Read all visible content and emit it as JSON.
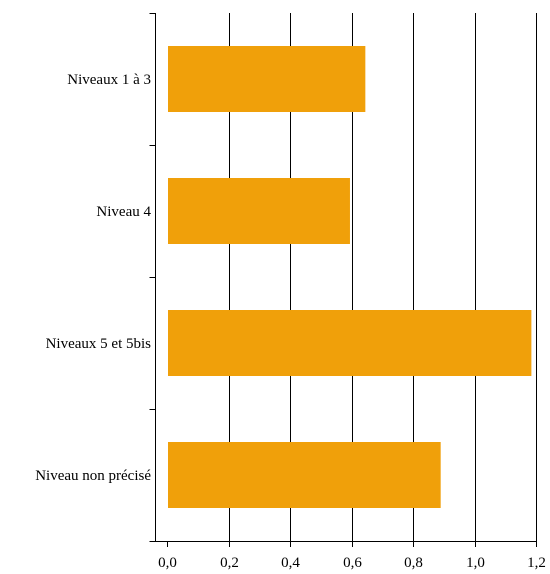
{
  "chart_data": {
    "type": "bar",
    "orientation": "horizontal",
    "categories": [
      "Niveaux 1 à 3",
      "Niveau 4",
      "Niveaux 5 et 5bis",
      "Niveau non précisé"
    ],
    "values": [
      0.645,
      0.595,
      1.185,
      0.89
    ],
    "title": "",
    "xlabel": "",
    "ylabel": "",
    "xlim": [
      0,
      1.2
    ],
    "xticks": [
      0.0,
      0.2,
      0.4,
      0.6,
      0.8,
      1.0,
      1.2
    ],
    "xtick_labels": [
      "0,0",
      "0,2",
      "0,4",
      "0,6",
      "0,8",
      "1,0",
      "1,2"
    ],
    "grid": "vertical",
    "legend": "none",
    "colors": {
      "bar": "#F0A00A",
      "grid": "#000000",
      "axis": "#000000"
    }
  }
}
